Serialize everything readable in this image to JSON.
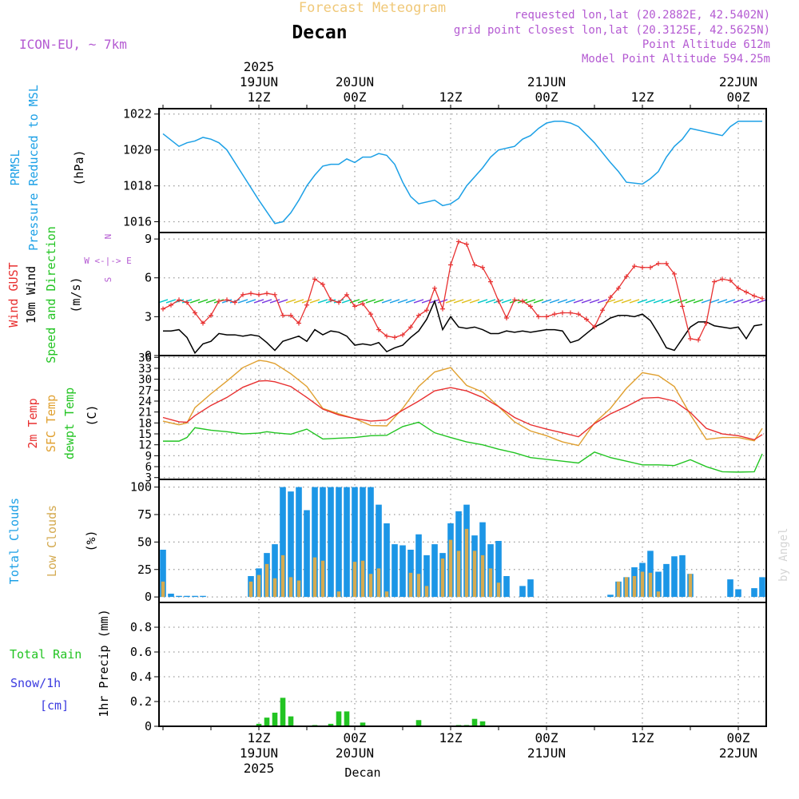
{
  "header": {
    "title": "Forecast Meteogram",
    "location": "Decan",
    "model": "ICON-EU, ~ 7km",
    "requested": "requested lon,lat (20.2882E, 42.5402N)",
    "grid_point": "grid point closest lon,lat (20.3125E, 42.5625N)",
    "point_altitude": "Point Altitude 612m",
    "model_altitude": "Model Point Altitude 594.25m",
    "footer_location": "Decan",
    "credit": "by Angel"
  },
  "colors": {
    "pressure": "#1ca0e6",
    "gust": "#e83030",
    "wind": "#000000",
    "temp": "#e83030",
    "sfc_temp": "#e0a030",
    "dewpt": "#22c422",
    "total_clouds": "#1c96e6",
    "low_clouds": "#d4aa50",
    "rain": "#22c422",
    "snow": "#3a3ae0",
    "header_purple": "#b45ad2",
    "title_orange": "#f0c878"
  },
  "time_axis": {
    "top_labels": [
      {
        "t": 12,
        "lines": [
          "2025",
          "19JUN",
          "12Z"
        ]
      },
      {
        "t": 24,
        "lines": [
          "20JUN",
          "00Z"
        ]
      },
      {
        "t": 36,
        "lines": [
          "12Z"
        ]
      },
      {
        "t": 48,
        "lines": [
          "21JUN",
          "00Z"
        ]
      },
      {
        "t": 60,
        "lines": [
          "12Z"
        ]
      },
      {
        "t": 72,
        "lines": [
          "22JUN",
          "00Z"
        ]
      }
    ],
    "bottom_labels": [
      {
        "t": 12,
        "lines": [
          "12Z",
          "19JUN",
          "2025"
        ]
      },
      {
        "t": 24,
        "lines": [
          "00Z",
          "20JUN"
        ]
      },
      {
        "t": 36,
        "lines": [
          "12Z"
        ]
      },
      {
        "t": 48,
        "lines": [
          "00Z",
          "21JUN"
        ]
      },
      {
        "t": 60,
        "lines": [
          "12Z"
        ]
      },
      {
        "t": 72,
        "lines": [
          "00Z",
          "22JUN"
        ]
      }
    ]
  },
  "chart_data": [
    {
      "type": "line",
      "id": "pressure",
      "title": "PRMSL Pressure Reduced to MSL",
      "ylabel": "(hPa)",
      "side_labels": [
        "PRMSL",
        "Pressure Reduced to MSL"
      ],
      "ylim": [
        1015.4,
        1022.3
      ],
      "yticks": [
        1016,
        1018,
        1020,
        1022
      ],
      "x_hours": [
        0,
        2,
        3,
        4,
        5,
        6,
        7,
        8,
        10,
        12,
        14,
        15,
        16,
        17,
        18,
        19,
        20,
        21,
        22,
        23,
        24,
        25,
        26,
        27,
        28,
        29,
        30,
        31,
        32,
        34,
        35,
        36,
        37,
        38,
        40,
        41,
        42,
        44,
        45,
        46,
        47,
        48,
        49,
        50,
        51,
        52,
        54,
        56,
        57,
        58,
        60,
        61,
        62,
        63,
        64,
        65,
        66,
        68,
        70,
        71,
        72,
        74,
        75
      ],
      "series": [
        {
          "name": "PRMSL",
          "values": [
            1020.9,
            1020.2,
            1020.4,
            1020.5,
            1020.7,
            1020.6,
            1020.4,
            1020.0,
            1018.6,
            1017.2,
            1015.9,
            1016.0,
            1016.5,
            1017.2,
            1018.0,
            1018.6,
            1019.1,
            1019.2,
            1019.2,
            1019.5,
            1019.3,
            1019.6,
            1019.6,
            1019.8,
            1019.7,
            1019.2,
            1018.2,
            1017.4,
            1017.0,
            1017.2,
            1016.9,
            1017.0,
            1017.3,
            1018.0,
            1019.0,
            1019.6,
            1020.0,
            1020.2,
            1020.6,
            1020.8,
            1021.2,
            1021.5,
            1021.6,
            1021.6,
            1021.5,
            1021.3,
            1020.4,
            1019.3,
            1018.8,
            1018.2,
            1018.1,
            1018.4,
            1018.8,
            1019.6,
            1020.2,
            1020.6,
            1021.2,
            1021.0,
            1020.8,
            1021.3,
            1021.6,
            1021.6,
            1021.6
          ]
        }
      ]
    },
    {
      "type": "line",
      "id": "wind",
      "title": "Wind GUST / 10m Wind Speed and Direction",
      "ylabel": "(m/s)",
      "side_labels": [
        "Wind GUST",
        "10m Wind",
        "Speed and Direction"
      ],
      "compass": [
        "N",
        "W <-|-> E",
        "S"
      ],
      "ylim": [
        0,
        9.5
      ],
      "yticks": [
        0,
        3,
        6,
        9
      ],
      "x_hours": [
        0,
        1,
        2,
        3,
        4,
        5,
        6,
        7,
        8,
        9,
        10,
        11,
        12,
        13,
        14,
        15,
        16,
        17,
        18,
        19,
        20,
        21,
        22,
        23,
        24,
        25,
        26,
        27,
        28,
        29,
        30,
        31,
        32,
        33,
        34,
        35,
        36,
        37,
        38,
        39,
        40,
        41,
        42,
        43,
        44,
        45,
        46,
        47,
        48,
        49,
        50,
        51,
        52,
        53,
        54,
        55,
        56,
        57,
        58,
        59,
        60,
        61,
        62,
        63,
        64,
        65,
        66,
        67,
        68,
        69,
        70,
        71,
        72,
        73,
        74,
        75
      ],
      "series": [
        {
          "name": "Wind GUST",
          "values": [
            3.6,
            3.9,
            4.3,
            4.1,
            3.3,
            2.5,
            3.1,
            4.2,
            4.3,
            4.1,
            4.7,
            4.8,
            4.7,
            4.8,
            4.7,
            3.1,
            3.1,
            2.5,
            3.9,
            5.9,
            5.5,
            4.3,
            4.1,
            4.7,
            3.8,
            4.0,
            3.2,
            2.0,
            1.5,
            1.4,
            1.6,
            2.2,
            3.1,
            3.5,
            5.2,
            3.6,
            7.0,
            8.8,
            8.6,
            7.0,
            6.8,
            5.7,
            4.2,
            2.9,
            4.3,
            4.2,
            3.8,
            3.0,
            3.0,
            3.2,
            3.3,
            3.3,
            3.2,
            2.8,
            2.2,
            3.5,
            4.5,
            5.2,
            6.1,
            6.9,
            6.8,
            6.8,
            7.1,
            7.1,
            6.3,
            3.8,
            1.3,
            1.2,
            2.5,
            5.7,
            5.9,
            5.8,
            5.2,
            4.9,
            4.6,
            4.4
          ]
        },
        {
          "name": "10m Wind",
          "values": [
            1.9,
            1.9,
            2.0,
            1.4,
            0.2,
            0.9,
            1.1,
            1.7,
            1.6,
            1.6,
            1.5,
            1.6,
            1.5,
            1.0,
            0.4,
            1.1,
            1.3,
            1.5,
            1.1,
            2.0,
            1.6,
            1.9,
            1.8,
            1.5,
            0.8,
            0.9,
            0.8,
            1.0,
            0.3,
            0.6,
            0.8,
            1.4,
            1.9,
            2.8,
            4.2,
            2.0,
            3.0,
            2.2,
            2.1,
            2.2,
            2.0,
            1.7,
            1.7,
            1.9,
            1.8,
            1.9,
            1.8,
            1.9,
            2.0,
            2.0,
            1.9,
            1.0,
            1.2,
            1.7,
            2.2,
            2.5,
            2.9,
            3.1,
            3.1,
            3.0,
            3.2,
            2.7,
            1.7,
            0.6,
            0.4,
            1.3,
            2.2,
            2.6,
            2.6,
            2.3,
            2.2,
            2.1,
            2.2,
            1.3,
            2.3,
            2.4
          ]
        }
      ]
    },
    {
      "type": "line",
      "id": "temperature",
      "title": "2m Temp / SFC Temp / dewpt Temp",
      "ylabel": "(C)",
      "side_labels": [
        "2m Temp",
        "SFC Temp",
        "dewpt Temp"
      ],
      "ylim": [
        2.5,
        36.5
      ],
      "yticks": [
        3,
        6,
        9,
        12,
        15,
        18,
        21,
        24,
        27,
        30,
        33,
        36
      ],
      "x_hours": [
        0,
        2,
        3,
        4,
        6,
        8,
        10,
        12,
        13,
        14,
        16,
        18,
        20,
        22,
        24,
        26,
        28,
        30,
        32,
        34,
        36,
        38,
        40,
        42,
        44,
        46,
        48,
        50,
        52,
        54,
        56,
        58,
        60,
        62,
        64,
        66,
        68,
        70,
        72,
        74,
        75
      ],
      "series": [
        {
          "name": "2m Temp",
          "values": [
            19.5,
            18.3,
            18.2,
            20.0,
            22.8,
            25.0,
            27.8,
            29.5,
            29.6,
            29.3,
            28.0,
            25.0,
            21.8,
            20.2,
            19.2,
            18.5,
            18.8,
            21.5,
            24.0,
            26.8,
            27.7,
            26.8,
            25.0,
            22.5,
            19.5,
            17.5,
            16.3,
            15.3,
            14.2,
            17.8,
            20.5,
            22.5,
            24.8,
            25.0,
            24.0,
            20.9,
            16.5,
            15.0,
            14.5,
            13.4,
            14.8
          ]
        },
        {
          "name": "SFC Temp",
          "values": [
            18.5,
            17.5,
            18.0,
            22.2,
            26.0,
            29.5,
            33.2,
            35.2,
            34.9,
            34.3,
            31.5,
            28.0,
            22.0,
            20.5,
            19.2,
            17.3,
            17.2,
            22.0,
            28.0,
            32.0,
            33.2,
            28.3,
            26.5,
            22.5,
            18.3,
            15.8,
            14.5,
            12.8,
            11.8,
            18.0,
            22.0,
            27.5,
            31.8,
            31.0,
            28.0,
            20.3,
            13.5,
            14.0,
            14.0,
            13.1,
            16.5
          ]
        },
        {
          "name": "dewpt Temp",
          "values": [
            13.0,
            13.0,
            14.0,
            16.7,
            16.0,
            15.6,
            15.0,
            15.2,
            15.6,
            15.3,
            14.9,
            16.3,
            13.6,
            13.8,
            14.0,
            14.5,
            14.6,
            17.0,
            18.2,
            15.3,
            14.0,
            12.8,
            12.0,
            10.8,
            9.8,
            8.5,
            8.0,
            7.5,
            7.0,
            10.0,
            8.5,
            7.5,
            6.5,
            6.5,
            6.3,
            7.9,
            6.0,
            4.6,
            4.5,
            4.6,
            9.5
          ]
        }
      ]
    },
    {
      "type": "bar",
      "id": "clouds",
      "title": "Total Clouds / Low Clouds",
      "ylabel": "(%)",
      "side_labels": [
        "Total Clouds",
        "Low Clouds"
      ],
      "ylim": [
        -5,
        107
      ],
      "yticks": [
        0,
        25,
        50,
        75,
        100
      ],
      "x_hours": [
        0,
        1,
        2,
        3,
        4,
        5,
        6,
        7,
        8,
        9,
        10,
        11,
        12,
        13,
        14,
        15,
        16,
        17,
        18,
        19,
        20,
        21,
        22,
        23,
        24,
        25,
        26,
        27,
        28,
        29,
        30,
        31,
        32,
        33,
        34,
        35,
        36,
        37,
        38,
        39,
        40,
        41,
        42,
        43,
        44,
        45,
        46,
        47,
        48,
        49,
        50,
        51,
        52,
        53,
        54,
        55,
        56,
        57,
        58,
        59,
        60,
        61,
        62,
        63,
        64,
        65,
        66,
        67,
        68,
        69,
        70,
        71,
        72,
        73,
        74,
        75
      ],
      "series": [
        {
          "name": "Total Clouds",
          "values": [
            43,
            3,
            1,
            1,
            1,
            1,
            0,
            0,
            0,
            0,
            0,
            19,
            26,
            40,
            48,
            100,
            96,
            100,
            79,
            100,
            100,
            100,
            100,
            100,
            100,
            100,
            100,
            84,
            67,
            48,
            47,
            43,
            57,
            38,
            48,
            40,
            67,
            78,
            84,
            56,
            68,
            48,
            51,
            19,
            0,
            10,
            16,
            0,
            0,
            0,
            0,
            0,
            0,
            0,
            0,
            0,
            2,
            14,
            18,
            27,
            31,
            42,
            23,
            30,
            37,
            38,
            21,
            0,
            0,
            0,
            0,
            16,
            7,
            0,
            8,
            18
          ]
        },
        {
          "name": "Low Clouds",
          "values": [
            14,
            0,
            0,
            0,
            0,
            0,
            0,
            0,
            0,
            0,
            0,
            14,
            20,
            30,
            17,
            38,
            18,
            15,
            0,
            36,
            33,
            0,
            5,
            0,
            32,
            33,
            21,
            26,
            5,
            0,
            0,
            22,
            21,
            10,
            0,
            35,
            52,
            42,
            62,
            42,
            38,
            26,
            13,
            0,
            0,
            0,
            0,
            0,
            0,
            0,
            0,
            0,
            0,
            0,
            0,
            0,
            0,
            14,
            18,
            19,
            23,
            22,
            5,
            0,
            0,
            0,
            21,
            0,
            0,
            0,
            0,
            0,
            0,
            0,
            0,
            0
          ]
        }
      ]
    },
    {
      "type": "bar",
      "id": "precip",
      "title": "1hr Precip (mm)",
      "ylabel": "1hr Precip (mm)",
      "side_labels": [
        "Total Rain",
        "Snow/1h",
        "[cm]"
      ],
      "ylim": [
        0,
        1.0
      ],
      "yticks": [
        0,
        0.2,
        0.4,
        0.6,
        0.8
      ],
      "x_hours": [
        0,
        1,
        2,
        3,
        4,
        5,
        6,
        7,
        8,
        9,
        10,
        11,
        12,
        13,
        14,
        15,
        16,
        17,
        18,
        19,
        20,
        21,
        22,
        23,
        24,
        25,
        26,
        27,
        28,
        29,
        30,
        31,
        32,
        33,
        34,
        35,
        36,
        37,
        38,
        39,
        40,
        41,
        42,
        43,
        44,
        45,
        46,
        47,
        48,
        49,
        50,
        51,
        52,
        53,
        54,
        55,
        56,
        57,
        58,
        59,
        60,
        61,
        62,
        63,
        64,
        65,
        66,
        67,
        68,
        69,
        70,
        71,
        72,
        73,
        74,
        75
      ],
      "series": [
        {
          "name": "Total Rain",
          "values": [
            0,
            0,
            0,
            0,
            0,
            0,
            0,
            0,
            0,
            0,
            0,
            0,
            0.02,
            0.07,
            0.11,
            0.23,
            0.08,
            0,
            0,
            0.01,
            0,
            0.02,
            0.12,
            0.12,
            0,
            0.03,
            0,
            0,
            0,
            0,
            0,
            0,
            0.05,
            0,
            0,
            0,
            0,
            0.01,
            0.01,
            0.06,
            0.04,
            0,
            0,
            0,
            0,
            0,
            0,
            0,
            0,
            0,
            0,
            0,
            0,
            0,
            0,
            0,
            0,
            0,
            0,
            0,
            0,
            0,
            0,
            0,
            0,
            0,
            0,
            0,
            0,
            0,
            0,
            0,
            0,
            0,
            0,
            0
          ]
        },
        {
          "name": "Snow/1h",
          "values": [
            0,
            0,
            0,
            0,
            0,
            0,
            0,
            0,
            0,
            0,
            0,
            0,
            0,
            0,
            0,
            0,
            0,
            0,
            0,
            0,
            0,
            0,
            0,
            0,
            0,
            0,
            0,
            0,
            0,
            0,
            0,
            0,
            0,
            0,
            0,
            0,
            0,
            0,
            0,
            0,
            0,
            0,
            0,
            0,
            0,
            0,
            0,
            0,
            0,
            0,
            0,
            0,
            0,
            0,
            0,
            0,
            0,
            0,
            0,
            0,
            0,
            0,
            0,
            0,
            0,
            0,
            0,
            0,
            0,
            0,
            0,
            0,
            0,
            0,
            0,
            0
          ]
        }
      ]
    }
  ]
}
